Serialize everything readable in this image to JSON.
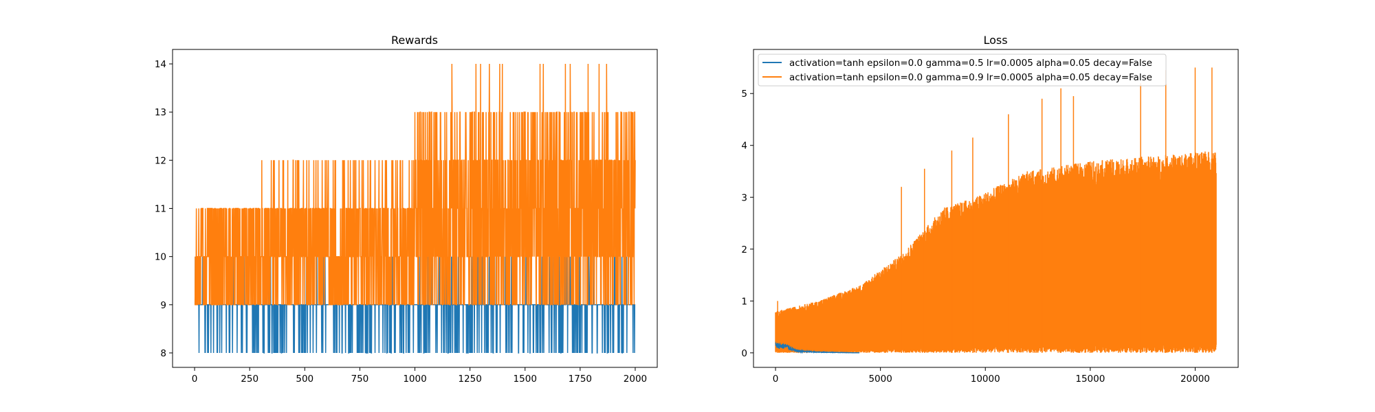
{
  "figure": {
    "background": "#ffffff",
    "series_colors": {
      "gamma_0_5": "#1f77b4",
      "gamma_0_9": "#ff7f0e"
    }
  },
  "chart_data": [
    {
      "type": "line",
      "title": "Rewards",
      "xlabel": "",
      "ylabel": "",
      "xlim": [
        -100,
        2100
      ],
      "ylim": [
        7.7,
        14.3
      ],
      "x_ticks": [
        0,
        250,
        500,
        750,
        1000,
        1250,
        1500,
        1750,
        2000
      ],
      "y_ticks": [
        8,
        9,
        10,
        11,
        12,
        13,
        14
      ],
      "grid": false,
      "series": [
        {
          "color": "#1f77b4",
          "x_range": [
            0,
            2000
          ],
          "value_range": [
            8,
            10
          ],
          "description_points": [
            {
              "x": 0,
              "y": 9
            },
            {
              "x": 250,
              "y": 8
            },
            {
              "x": 500,
              "y": 9
            },
            {
              "x": 750,
              "y": 8
            },
            {
              "x": 1000,
              "y": 10
            },
            {
              "x": 1250,
              "y": 8
            },
            {
              "x": 1500,
              "y": 9
            },
            {
              "x": 1750,
              "y": 8
            },
            {
              "x": 2000,
              "y": 10
            }
          ]
        },
        {
          "color": "#ff7f0e",
          "x_range": [
            0,
            2000
          ],
          "value_range": [
            9,
            14
          ],
          "description_points": [
            {
              "x": 0,
              "y": 11
            },
            {
              "x": 300,
              "y": 12
            },
            {
              "x": 600,
              "y": 11
            },
            {
              "x": 900,
              "y": 12
            },
            {
              "x": 1010,
              "y": 14
            },
            {
              "x": 1250,
              "y": 13
            },
            {
              "x": 1500,
              "y": 13
            },
            {
              "x": 1750,
              "y": 12
            },
            {
              "x": 1970,
              "y": 14
            }
          ]
        }
      ]
    },
    {
      "type": "line",
      "title": "Loss",
      "xlabel": "",
      "ylabel": "",
      "xlim": [
        -1050,
        22050
      ],
      "ylim": [
        -0.28,
        5.85
      ],
      "x_ticks": [
        0,
        5000,
        10000,
        15000,
        20000
      ],
      "y_ticks": [
        0,
        1,
        2,
        3,
        4,
        5
      ],
      "grid": false,
      "legend_position": "upper-left",
      "series": [
        {
          "name": "activation=tanh epsilon=0.0 gamma=0.5 lr=0.0005 alpha=0.05 decay=False",
          "color": "#1f77b4",
          "x_range": [
            0,
            4000
          ],
          "envelope": [
            {
              "x": 0,
              "y": 0.2
            },
            {
              "x": 500,
              "y": 0.18
            },
            {
              "x": 1000,
              "y": 0.05
            },
            {
              "x": 2000,
              "y": 0.02
            },
            {
              "x": 4000,
              "y": 0.0
            }
          ]
        },
        {
          "name": "activation=tanh epsilon=0.0 gamma=0.9 lr=0.0005 alpha=0.05 decay=False",
          "color": "#ff7f0e",
          "x_range": [
            0,
            21000
          ],
          "envelope": [
            {
              "x": 0,
              "y": 0.8
            },
            {
              "x": 2000,
              "y": 1.0
            },
            {
              "x": 4000,
              "y": 1.3
            },
            {
              "x": 6000,
              "y": 1.9
            },
            {
              "x": 8000,
              "y": 2.8
            },
            {
              "x": 9500,
              "y": 3.0
            },
            {
              "x": 10000,
              "y": 3.1
            },
            {
              "x": 12000,
              "y": 3.5
            },
            {
              "x": 15000,
              "y": 3.7
            },
            {
              "x": 18000,
              "y": 3.8
            },
            {
              "x": 21000,
              "y": 3.9
            }
          ],
          "spikes": [
            {
              "x": 100,
              "y": 1.0
            },
            {
              "x": 6000,
              "y": 3.2
            },
            {
              "x": 7100,
              "y": 3.55
            },
            {
              "x": 8400,
              "y": 3.9
            },
            {
              "x": 9400,
              "y": 4.15
            },
            {
              "x": 11100,
              "y": 4.6
            },
            {
              "x": 12700,
              "y": 4.9
            },
            {
              "x": 13600,
              "y": 5.1
            },
            {
              "x": 14200,
              "y": 4.95
            },
            {
              "x": 17400,
              "y": 5.2
            },
            {
              "x": 18600,
              "y": 5.45
            },
            {
              "x": 20000,
              "y": 5.5
            },
            {
              "x": 20800,
              "y": 5.5
            }
          ]
        }
      ]
    }
  ]
}
